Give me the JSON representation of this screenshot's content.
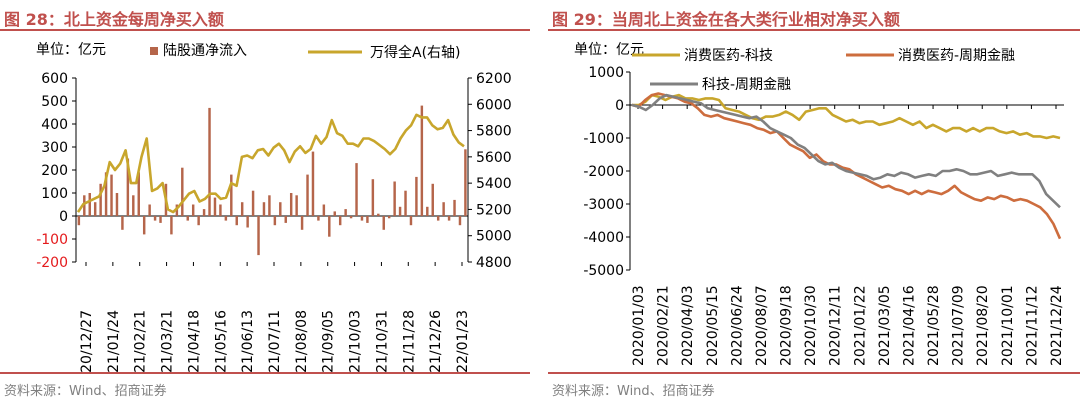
{
  "left_panel": {
    "title": "图 28：北上资金每周净买入额",
    "unit_label": "单位：亿元",
    "source": "资料来源：Wind、招商证券"
  },
  "right_panel": {
    "title": "图 29：当周北上资金在各大类行业相对净买入额",
    "unit_label": "单位：亿元",
    "source": "资料来源：Wind、招商证券"
  },
  "colors": {
    "accent": "#c0504d",
    "bar": "#b5654a",
    "line_gold": "#c8a62c",
    "line_orange": "#cd6d3e",
    "line_gray": "#808080",
    "neg_tick": "#e41a1c"
  },
  "chart_data": [
    {
      "type": "bar",
      "title": "北上资金每周净买入额",
      "ylabel": "亿元",
      "ylim": [
        -200,
        600
      ],
      "y2lim": [
        4800,
        6200
      ],
      "yticks": [
        "600",
        "500",
        "400",
        "300",
        "200",
        "100",
        "0",
        "-100",
        "-200"
      ],
      "y2ticks": [
        "6200",
        "6000",
        "5800",
        "5600",
        "5400",
        "5200",
        "5000",
        "4800"
      ],
      "xticks": [
        "2020/12/27",
        "2021/01/24",
        "2021/02/21",
        "2021/03/21",
        "2021/04/18",
        "2021/05/16",
        "2021/06/13",
        "2021/07/11",
        "2021/08/08",
        "2021/09/05",
        "2021/10/03",
        "2021/10/31",
        "2021/11/28",
        "2021/12/26",
        "2022/01/23"
      ],
      "legend": [
        "陆股通净流入",
        "万得全A(右轴)"
      ],
      "series": [
        {
          "name": "陆股通净流入",
          "axis": "left",
          "values": [
            -40,
            90,
            100,
            60,
            140,
            190,
            180,
            100,
            -60,
            250,
            90,
            190,
            -80,
            50,
            -20,
            -30,
            140,
            -80,
            50,
            210,
            -20,
            50,
            -40,
            30,
            470,
            80,
            50,
            -20,
            180,
            -40,
            60,
            -50,
            110,
            -170,
            60,
            90,
            -40,
            60,
            -30,
            100,
            90,
            -60,
            180,
            280,
            -20,
            50,
            -90,
            20,
            -40,
            30,
            -10,
            230,
            -20,
            -30,
            160,
            10,
            -60,
            -10,
            150,
            40,
            110,
            -40,
            170,
            480,
            40,
            140,
            -20,
            60,
            -20,
            70,
            -40,
            290
          ]
        },
        {
          "name": "万得全A(右轴)",
          "axis": "right",
          "values": [
            5180,
            5240,
            5260,
            5280,
            5300,
            5380,
            5560,
            5500,
            5550,
            5650,
            5400,
            5400,
            5600,
            5740,
            5340,
            5360,
            5400,
            5200,
            5180,
            5220,
            5270,
            5320,
            5340,
            5260,
            5280,
            5320,
            5320,
            5280,
            5290,
            5400,
            5380,
            5600,
            5610,
            5590,
            5650,
            5660,
            5610,
            5670,
            5700,
            5650,
            5560,
            5640,
            5680,
            5630,
            5660,
            5760,
            5700,
            5750,
            5880,
            5780,
            5760,
            5700,
            5700,
            5680,
            5740,
            5740,
            5720,
            5690,
            5660,
            5620,
            5660,
            5740,
            5800,
            5840,
            5920,
            5900,
            5900,
            5840,
            5810,
            5820,
            5880,
            5770,
            5710,
            5680
          ]
        }
      ]
    },
    {
      "type": "line",
      "title": "当周北上资金在各大类行业相对净买入额",
      "ylabel": "亿元",
      "ylim": [
        -5000,
        1000
      ],
      "yticks": [
        "1000",
        "0",
        "-1000",
        "-2000",
        "-3000",
        "-4000",
        "-5000"
      ],
      "xticks": [
        "2020/01/03",
        "2020/02/21",
        "2020/04/03",
        "2020/05/15",
        "2020/06/24",
        "2020/08/07",
        "2020/09/18",
        "2020/10/30",
        "2020/12/11",
        "2021/01/22",
        "2021/03/05",
        "2021/04/16",
        "2021/05/28",
        "2021/07/09",
        "2021/08/20",
        "2021/10/01",
        "2021/11/12",
        "2021/12/24"
      ],
      "legend": [
        "消费医药-科技",
        "消费医药-周期金融",
        "科技-周期金融"
      ],
      "series": [
        {
          "name": "消费医药-科技",
          "values": [
            0,
            0,
            100,
            300,
            250,
            150,
            250,
            300,
            200,
            200,
            150,
            200,
            200,
            150,
            -100,
            -150,
            -200,
            -300,
            -400,
            -450,
            -350,
            -350,
            -300,
            -200,
            -300,
            -450,
            -200,
            -150,
            -100,
            -100,
            -300,
            -400,
            -500,
            -450,
            -550,
            -500,
            -500,
            -600,
            -550,
            -500,
            -400,
            -500,
            -600,
            -500,
            -700,
            -600,
            -700,
            -800,
            -700,
            -700,
            -800,
            -700,
            -800,
            -700,
            -700,
            -800,
            -850,
            -800,
            -900,
            -850,
            -950,
            -950,
            -1000,
            -950,
            -1000
          ]
        },
        {
          "name": "消费医药-周期金融",
          "values": [
            0,
            -50,
            150,
            300,
            350,
            300,
            250,
            200,
            100,
            50,
            -100,
            -300,
            -350,
            -300,
            -400,
            -450,
            -500,
            -550,
            -600,
            -700,
            -750,
            -850,
            -800,
            -1000,
            -1200,
            -1300,
            -1400,
            -1600,
            -1500,
            -1700,
            -1800,
            -1800,
            -1900,
            -1950,
            -2100,
            -2200,
            -2300,
            -2400,
            -2500,
            -2450,
            -2550,
            -2600,
            -2700,
            -2600,
            -2700,
            -2600,
            -2650,
            -2700,
            -2600,
            -2450,
            -2650,
            -2750,
            -2850,
            -2900,
            -2800,
            -2850,
            -2750,
            -2800,
            -2900,
            -2850,
            -2900,
            -3000,
            -3100,
            -3300,
            -3600,
            -4050
          ]
        },
        {
          "name": "科技-周期金融",
          "values": [
            0,
            -50,
            -150,
            0,
            200,
            300,
            250,
            200,
            150,
            100,
            50,
            -100,
            -150,
            -200,
            -250,
            -300,
            -350,
            -400,
            -350,
            -500,
            -700,
            -800,
            -900,
            -1000,
            -1200,
            -1300,
            -1500,
            -1700,
            -1800,
            -1750,
            -1900,
            -2000,
            -2050,
            -2100,
            -2150,
            -2250,
            -2200,
            -2100,
            -2150,
            -2050,
            -2100,
            -2200,
            -2150,
            -2100,
            -2150,
            -2000,
            -2000,
            -1950,
            -2000,
            -2100,
            -2100,
            -2050,
            -2000,
            -2150,
            -2100,
            -2050,
            -2100,
            -2100,
            -2100,
            -2300,
            -2700,
            -2900,
            -3100
          ]
        }
      ]
    }
  ]
}
